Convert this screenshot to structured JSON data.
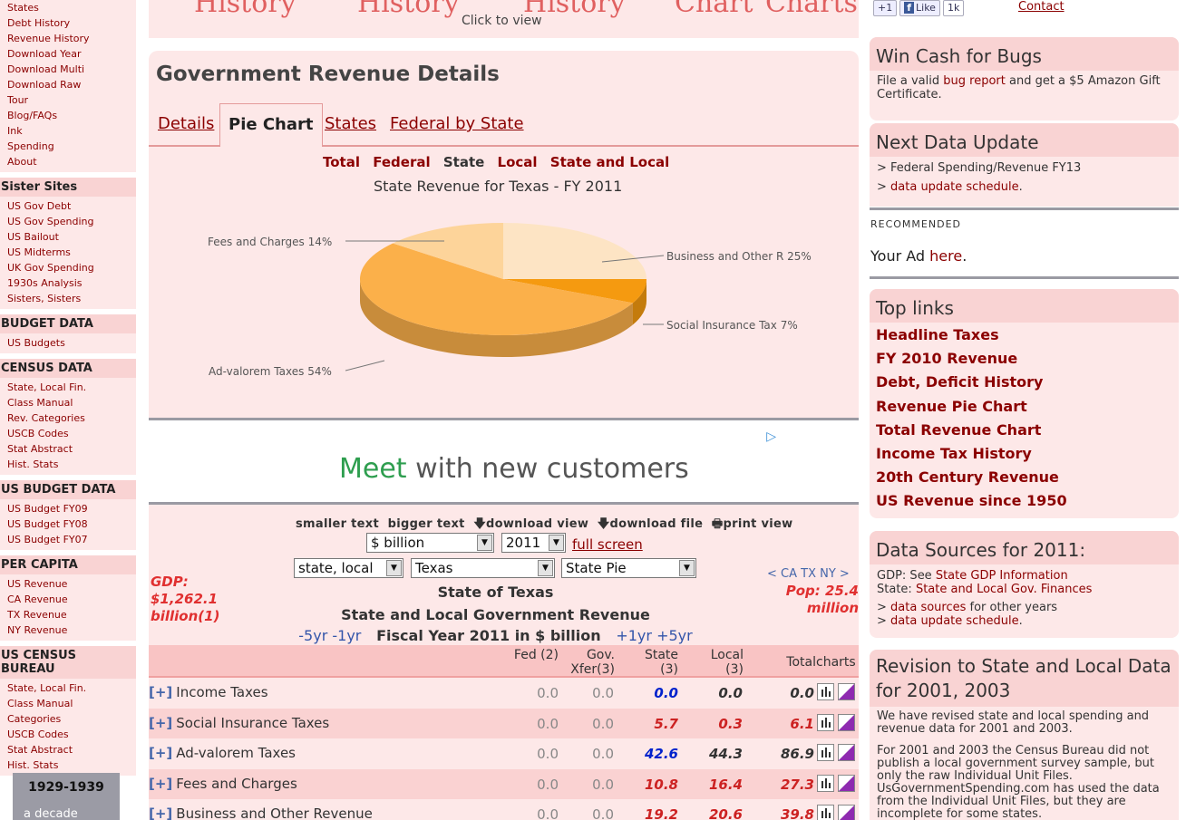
{
  "left": {
    "group1": [
      "States",
      "Debt History",
      "Revenue History",
      "Download Year",
      "Download Multi",
      "Download Raw",
      "Tour",
      "Blog/FAQs",
      "Ink",
      "Spending",
      "About"
    ],
    "sister": {
      "title": "Sister Sites",
      "items": [
        "US Gov Debt",
        "US Gov Spending",
        "US Bailout",
        "US Midterms",
        "UK Gov Spending",
        "1930s Analysis",
        "Sisters, Sisters"
      ]
    },
    "budget": {
      "title": "BUDGET DATA",
      "items": [
        "US Budgets"
      ]
    },
    "census": {
      "title": "CENSUS DATA",
      "items": [
        "State, Local Fin.",
        "Class Manual",
        "Rev. Categories",
        "USCB Codes",
        "Stat Abstract",
        "Hist. Stats"
      ]
    },
    "usbudget": {
      "title": "US BUDGET DATA",
      "items": [
        "US Budget FY09",
        "US Budget FY08",
        "US Budget FY07"
      ]
    },
    "percapita": {
      "title": "PER CAPITA",
      "items": [
        "US Revenue",
        "CA Revenue",
        "TX Revenue",
        "NY Revenue"
      ]
    },
    "uscensus": {
      "title": "US CENSUS BUREAU",
      "items": [
        "State, Local Fin.",
        "Class Manual",
        "Categories",
        "USCB Codes",
        "Stat Abstract",
        "Hist. Stats"
      ]
    },
    "promo": {
      "title": "1929-1939",
      "sub": "a decade"
    }
  },
  "top": {
    "words": [
      "History",
      "History",
      "History",
      "Chart",
      "Charts"
    ],
    "click": "Click to view"
  },
  "panel": {
    "title": "Government Revenue Details",
    "tabs": [
      "Details",
      "Pie Chart",
      "States",
      "Federal by State"
    ],
    "subtabs": {
      "total": "Total",
      "federal": "Federal",
      "state": "State",
      "local": "Local",
      "stateandlocal": "State and Local"
    }
  },
  "chart_data": {
    "type": "pie",
    "title": "State Revenue for Texas - FY 2011",
    "slices": [
      {
        "name": "Business and Other R",
        "label": "Business and Other R 25%",
        "percent": 25,
        "color": "#fde4c4"
      },
      {
        "name": "Social Insurance Tax",
        "label": "Social Insurance Tax 7%",
        "percent": 7,
        "color": "#f59a10"
      },
      {
        "name": "Ad-valorem Taxes",
        "label": "Ad-valorem Taxes 54%",
        "percent": 54,
        "color": "#fbb04a"
      },
      {
        "name": "Fees and Charges",
        "label": "Fees and Charges 14%",
        "percent": 14,
        "color": "#fdd49a"
      }
    ]
  },
  "ad": {
    "meet": "Meet",
    "rest": "with new customers"
  },
  "table": {
    "tools": {
      "smaller": "smaller text",
      "bigger": "bigger text",
      "dlview": "download view",
      "dlfile": "download file",
      "print": "print view"
    },
    "selects": {
      "unit": "$ billion",
      "year": "2011",
      "level": "state, local",
      "state": "Texas",
      "view": "State Pie"
    },
    "fullscreen": "full screen",
    "gdp": "GDP: $1,262.1 billion(1)",
    "pop": "Pop: 25.4 million",
    "statenav": "< CA TX NY >",
    "h_state": "State of Texas",
    "h_sub": "State and Local Government Revenue",
    "nav_left": "-5yr -1yr",
    "fiscal": "Fiscal Year 2011 in $ billion",
    "nav_right": "+1yr +5yr",
    "cols": {
      "fed": "Fed (2)",
      "gov": "Gov. Xfer(3)",
      "state": "State (3)",
      "local": "Local (3)",
      "total": "Total",
      "charts": "charts"
    },
    "rows": [
      {
        "label": "Income Taxes",
        "fed": "0.0",
        "gov": "0.0",
        "state": "0.0",
        "local": "0.0",
        "total": "0.0",
        "state_color": "#0022cc",
        "local_color": "#333333",
        "total_color": "#333333"
      },
      {
        "label": "Social Insurance Taxes",
        "fed": "0.0",
        "gov": "0.0",
        "state": "5.7",
        "local": "0.3",
        "total": "6.1",
        "state_color": "#cc2222",
        "local_color": "#cc2222",
        "total_color": "#cc2222"
      },
      {
        "label": "Ad-valorem Taxes",
        "fed": "0.0",
        "gov": "0.0",
        "state": "42.6",
        "local": "44.3",
        "total": "86.9",
        "state_color": "#0022cc",
        "local_color": "#333333",
        "total_color": "#333333"
      },
      {
        "label": "Fees and Charges",
        "fed": "0.0",
        "gov": "0.0",
        "state": "10.8",
        "local": "16.4",
        "total": "27.3",
        "state_color": "#cc2222",
        "local_color": "#cc2222",
        "total_color": "#cc2222"
      },
      {
        "label": "Business and Other Revenue",
        "fed": "0.0",
        "gov": "0.0",
        "state": "19.2",
        "local": "20.6",
        "total": "39.8",
        "state_color": "#cc2222",
        "local_color": "#cc2222",
        "total_color": "#cc2222"
      }
    ]
  },
  "right": {
    "social": {
      "plus": "+1",
      "like": "Like",
      "count": "1k"
    },
    "contact": "Contact",
    "bug": {
      "title": "Win Cash for Bugs",
      "t1": "File a valid ",
      "link": "bug report",
      "t2": " and get a $5 Amazon Gift Certificate."
    },
    "update": {
      "title": "Next Data Update",
      "line1": "> Federal Spending/Revenue FY13",
      "link": "data update schedule"
    },
    "recommended": "RECOMMENDED",
    "yourad": "Your Ad ",
    "here": "here",
    "toplinks": {
      "title": "Top links",
      "items": [
        "Headline Taxes",
        "FY 2010 Revenue",
        "Debt, Deficit History",
        "Revenue Pie Chart",
        "Total Revenue Chart",
        "Income Tax History",
        "20th Century Revenue",
        "US Revenue since 1950"
      ]
    },
    "sources": {
      "title": "Data Sources for 2011:",
      "gdp_pre": "GDP: See ",
      "gdp_link": "State GDP Information",
      "state_pre": "State: ",
      "state_link": "State and Local Gov. Finances",
      "ds_link": "data sources",
      "ds_post": " for other years",
      "upd_link": "data update schedule"
    },
    "revision": {
      "title": "Revision to State and Local Data for 2001, 2003",
      "p1": "We have revised state and local spending and revenue data for 2001 and 2003.",
      "p2": "For 2001 and 2003 the Census Bureau did not publish a local government survey sample, but only the raw Individual Unit Files. UsGovernmentSpending.com has used the data from the Individual Unit Files, but they are incomplete for some states."
    }
  }
}
